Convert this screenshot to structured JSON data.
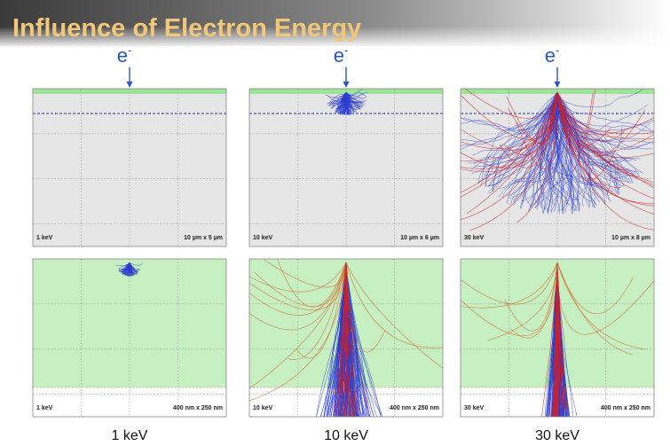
{
  "header": {
    "title": "Influence of Electron Energy"
  },
  "columns": [
    {
      "beam": {
        "base": "e",
        "sup": "-"
      },
      "caption": "1 keV",
      "panels": [
        {
          "energy": "1 keV",
          "size": "10 µm x 5 µm"
        },
        {
          "energy": "1 keV",
          "size": "400 nm x 250 nm"
        }
      ]
    },
    {
      "beam": {
        "base": "e",
        "sup": "-"
      },
      "caption": "10 keV",
      "panels": [
        {
          "energy": "10 keV",
          "size": "10 µm x 6 µm"
        },
        {
          "energy": "10 keV",
          "size": "400 nm x 250 nm"
        }
      ]
    },
    {
      "beam": {
        "base": "e",
        "sup": "-"
      },
      "caption": "30 keV",
      "panels": [
        {
          "energy": "30 keV",
          "size": "10 µm x 8 µm"
        },
        {
          "energy": "30 keV",
          "size": "400 nm x 250 nm"
        }
      ]
    }
  ]
}
